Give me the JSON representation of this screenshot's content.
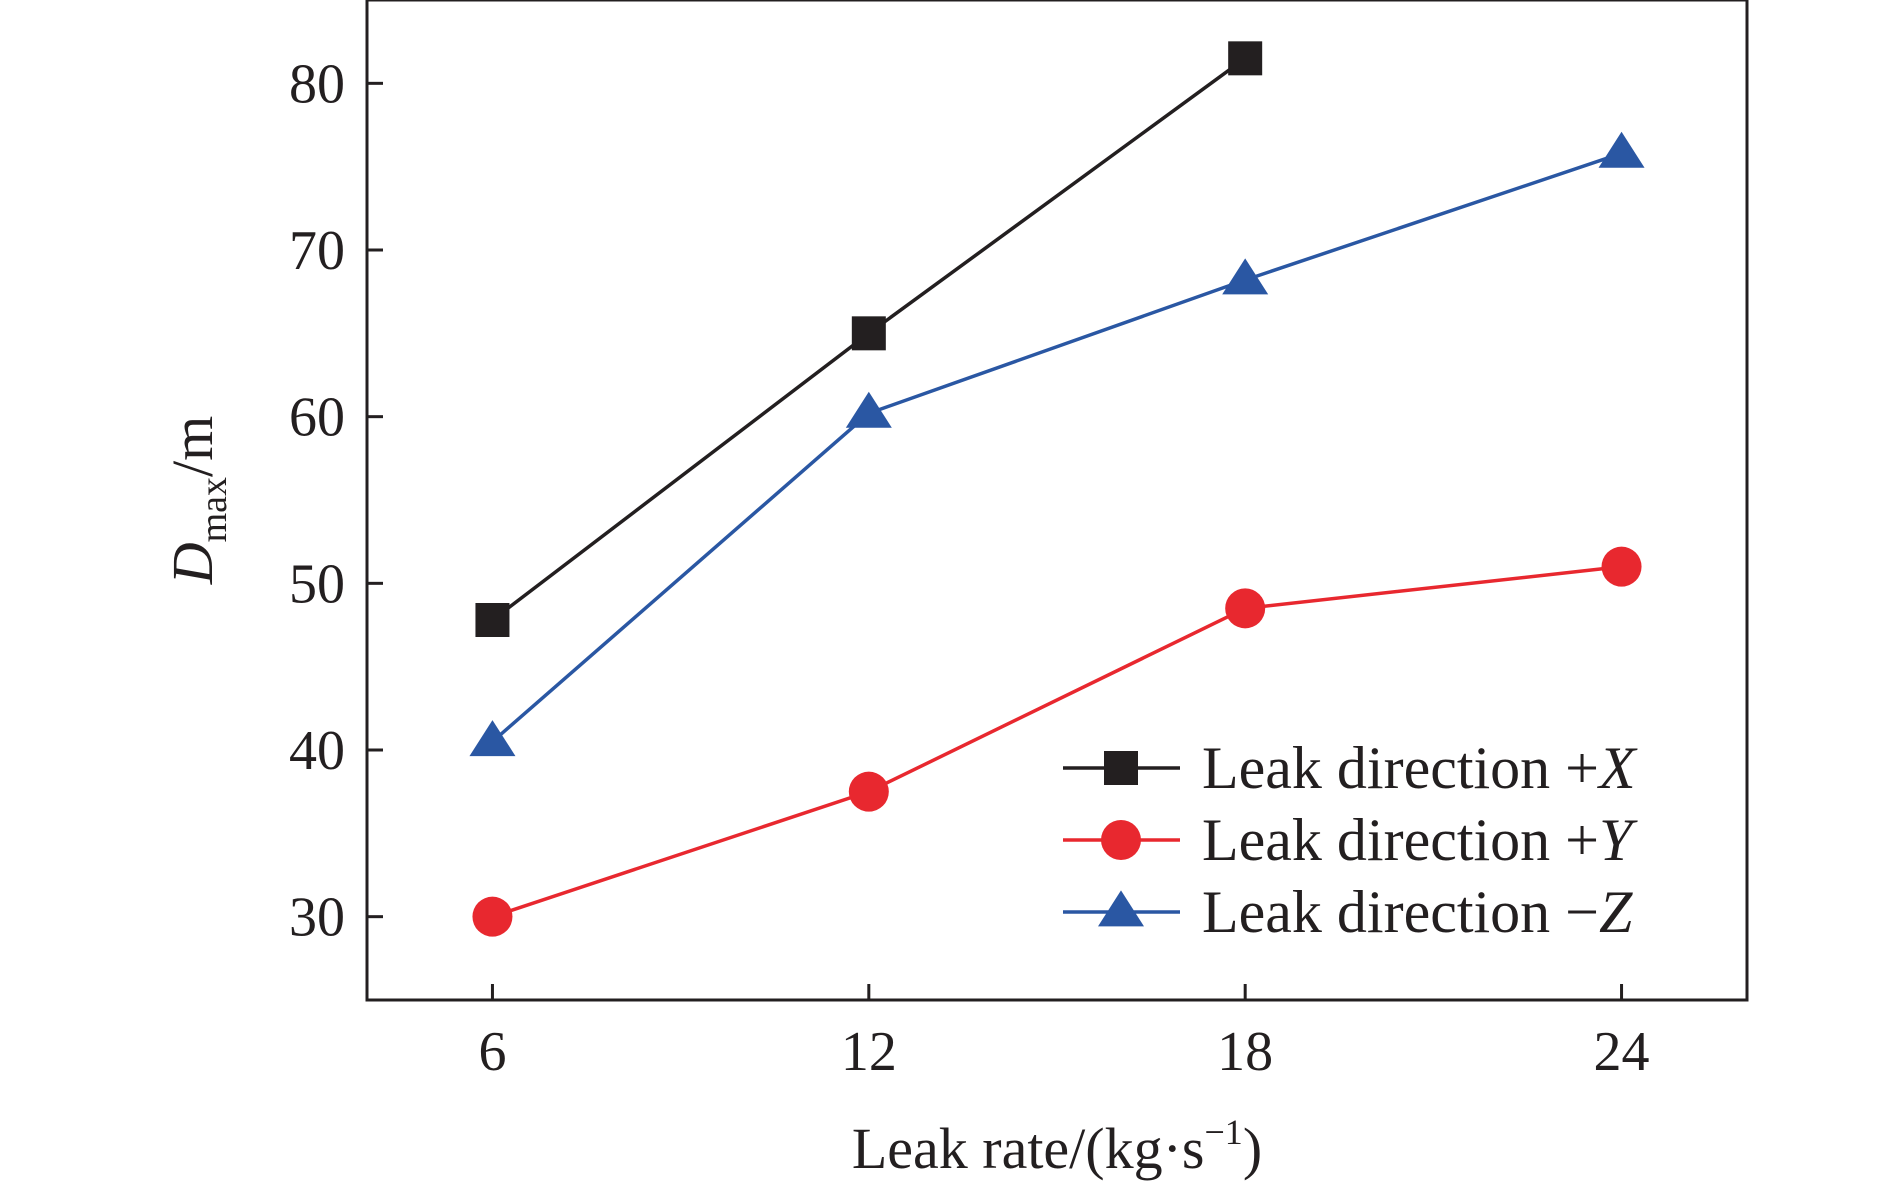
{
  "chart_data": {
    "type": "line",
    "title": "",
    "xlabel": "Leak rate/(kg·s⁻¹)",
    "xlabel_parts": {
      "main": "Leak rate/(kg·s",
      "sup": "−1",
      "close": ")"
    },
    "ylabel": "Dmax/m",
    "ylabel_parts": {
      "main": "D",
      "sub": "max",
      "unit": "/m"
    },
    "x": [
      6,
      12,
      18,
      24
    ],
    "x_ticks": [
      "6",
      "12",
      "18",
      "24"
    ],
    "y_ticks": [
      "30",
      "40",
      "50",
      "60",
      "70",
      "80"
    ],
    "xlim": [
      4,
      26
    ],
    "ylim": [
      25,
      85
    ],
    "grid": false,
    "legend_position": "bottom-right",
    "series": [
      {
        "name": "Leak direction +X",
        "base": "Leak direction +",
        "var": "X",
        "color": "#231f20",
        "marker": "square",
        "x": [
          6,
          12,
          18
        ],
        "values": [
          47.8,
          65.0,
          81.5
        ]
      },
      {
        "name": "Leak direction +Y",
        "base": "Leak direction +",
        "var": "Y",
        "color": "#e8282f",
        "marker": "circle",
        "x": [
          6,
          12,
          18,
          24
        ],
        "values": [
          30.0,
          37.5,
          48.5,
          51.0
        ]
      },
      {
        "name": "Leak direction −Z",
        "base": "Leak direction −",
        "var": "Z",
        "color": "#2a57a3",
        "marker": "triangle",
        "x": [
          6,
          12,
          18,
          24
        ],
        "values": [
          40.5,
          60.2,
          68.2,
          75.8
        ]
      }
    ]
  }
}
